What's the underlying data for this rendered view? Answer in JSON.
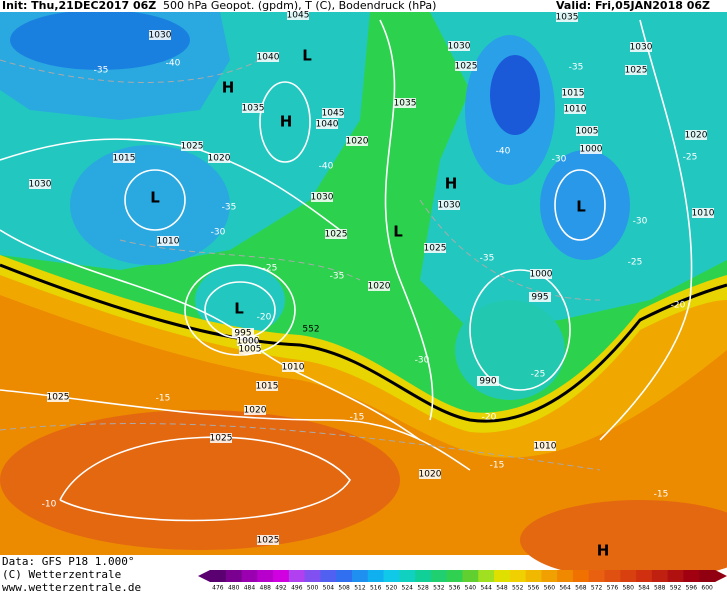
{
  "header": {
    "init": "Init: Thu,21DEC2017 06Z",
    "title": "500 hPa Geopot. (gpdm), T (C), Bodendruck (hPa)",
    "valid": "Valid: Fri,05JAN2018 06Z"
  },
  "map": {
    "pressure_labels": [
      1045,
      1030,
      1040,
      1035,
      1045,
      1040,
      1030,
      1025,
      1035,
      1030,
      1025,
      1015,
      1010,
      1005,
      1000,
      1020,
      1010,
      1035,
      1020,
      1025,
      1020,
      1015,
      1030,
      1030,
      1025,
      1030,
      1025,
      1020,
      1010,
      1000,
      995,
      990,
      995,
      1000,
      1005,
      1010,
      1015,
      1020,
      1025,
      1025,
      1010,
      1020,
      1025
    ],
    "contour_label": 552,
    "temperature_labels": [
      -35,
      -40,
      -35,
      -40,
      -30,
      -40,
      -35,
      -30,
      -25,
      -20,
      -35,
      -35,
      -30,
      -25,
      -25,
      -20,
      -30,
      -25,
      -20,
      -15,
      -15,
      -15,
      -15,
      -10
    ],
    "centers": [
      "H",
      "H",
      "L",
      "L",
      "L",
      "H",
      "L",
      "L",
      "H"
    ]
  },
  "footer": {
    "data": "Data: GFS P18 1.000°",
    "copyright": "(C) Wetterzentrale",
    "url": "www.wetterzentrale.de"
  },
  "colorbar": {
    "labels": [
      476,
      480,
      484,
      488,
      492,
      496,
      500,
      504,
      508,
      512,
      516,
      520,
      524,
      528,
      532,
      536,
      540,
      544,
      548,
      552,
      556,
      560,
      564,
      568,
      572,
      576,
      580,
      584,
      588,
      592,
      596,
      600
    ],
    "colors": [
      "#5a0070",
      "#7a0090",
      "#9a00b0",
      "#b800cc",
      "#d000e0",
      "#b040f0",
      "#8050f0",
      "#5060f0",
      "#3070f0",
      "#2090f0",
      "#10b0f0",
      "#10c8e8",
      "#10d0c0",
      "#10d098",
      "#20d070",
      "#30d050",
      "#60d030",
      "#a0e020",
      "#e0e000",
      "#f0d000",
      "#f0b800",
      "#f0a000",
      "#f08800",
      "#f07000",
      "#e86010",
      "#e05010",
      "#d84010",
      "#d03010",
      "#c02010",
      "#b01010",
      "#a00010",
      "#900010"
    ]
  }
}
